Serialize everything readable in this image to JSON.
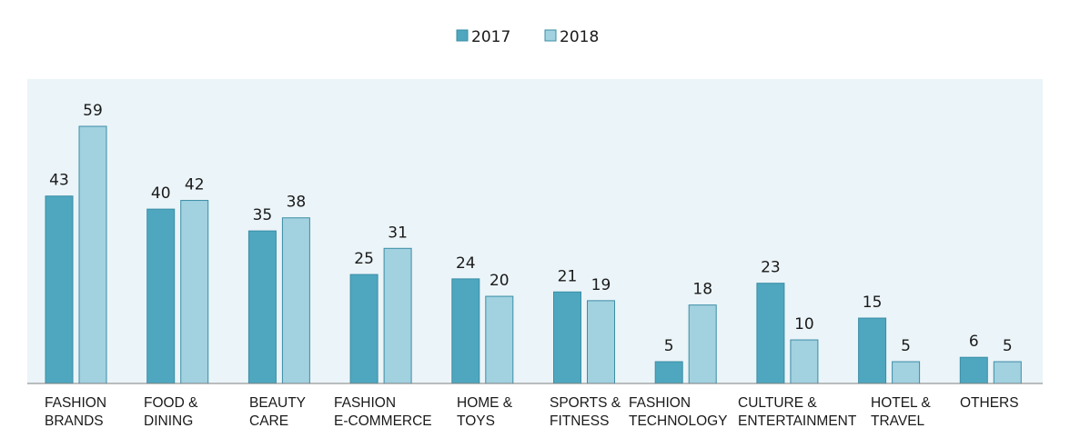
{
  "chart_data": {
    "type": "bar",
    "categories": [
      [
        "FASHION",
        "BRANDS"
      ],
      [
        "FOOD &",
        "DINING"
      ],
      [
        "BEAUTY",
        "CARE"
      ],
      [
        "FASHION",
        "E-COMMERCE"
      ],
      [
        "HOME &",
        "TOYS"
      ],
      [
        "SPORTS &",
        "FITNESS"
      ],
      [
        "FASHION",
        "TECHNOLOGY"
      ],
      [
        "CULTURE &",
        "ENTERTAINMENT"
      ],
      [
        "HOTEL &",
        "TRAVEL"
      ],
      [
        "OTHERS"
      ]
    ],
    "series": [
      {
        "name": "2017",
        "color": "#4ea7bf",
        "values": [
          43,
          40,
          35,
          25,
          24,
          21,
          5,
          23,
          15,
          6
        ]
      },
      {
        "name": "2018",
        "color": "#a2d1e0",
        "values": [
          59,
          42,
          38,
          31,
          20,
          19,
          18,
          10,
          5,
          5
        ]
      }
    ],
    "title": "",
    "xlabel": "",
    "ylabel": "",
    "ylim": [
      0,
      70
    ],
    "grid": false,
    "legend": "top-center",
    "plot_background": "#ebf4f8",
    "bar_border": "#3a8ea6"
  }
}
